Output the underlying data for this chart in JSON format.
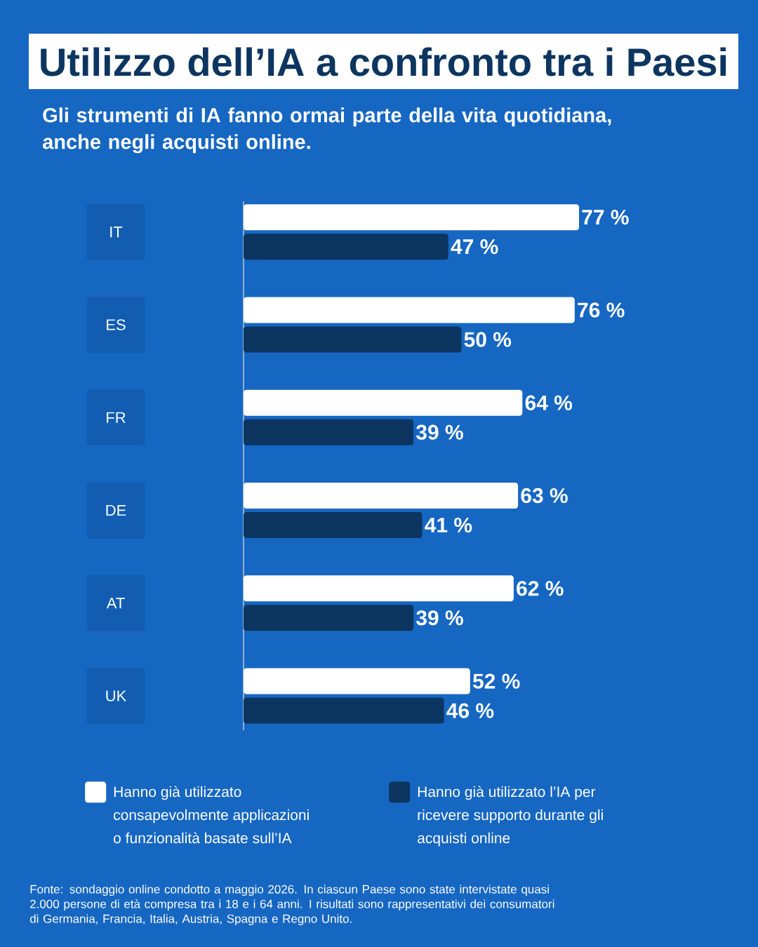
{
  "chart_data": {
    "type": "bar",
    "orientation": "horizontal",
    "title": "Utilizzo dell’IA a confronto tra i Paesi",
    "subtitle": "Gli strumenti di IA fanno ormai parte della vita quotidiana, anche negli acquisti online.",
    "categories": [
      "IT",
      "ES",
      "FR",
      "DE",
      "AT",
      "UK"
    ],
    "series": [
      {
        "name": "Hanno già utilizzato consapevolmente applicazioni o funzionalità basate sull’IA",
        "color": "#ffffff",
        "values": [
          77,
          76,
          64,
          63,
          62,
          52
        ],
        "value_labels": [
          "77 %",
          "76 %",
          "64 %",
          "63 %",
          "62 %",
          "52 %"
        ]
      },
      {
        "name": "Hanno già utilizzato l’IA per ricevere supporto durante gli acquisti online",
        "color": "#0c3560",
        "values": [
          47,
          50,
          39,
          41,
          39,
          46
        ],
        "value_labels": [
          "47 %",
          "50 %",
          "39 %",
          "41 %",
          "39 %",
          "46 %"
        ]
      }
    ],
    "tick_labels": "y",
    "legend": "bottom",
    "annotations": [
      "Fonte: sondaggio online condotto a maggio 2026. In ciascun Paese sono state intervistate quasi 2.000 persone di età compresa tra i 18 e i 64 anni. I risultati sono rappresentativi dei consumatori di Germania, Francia, Italia, Austria, Spagna e Regno Unito."
    ]
  }
}
